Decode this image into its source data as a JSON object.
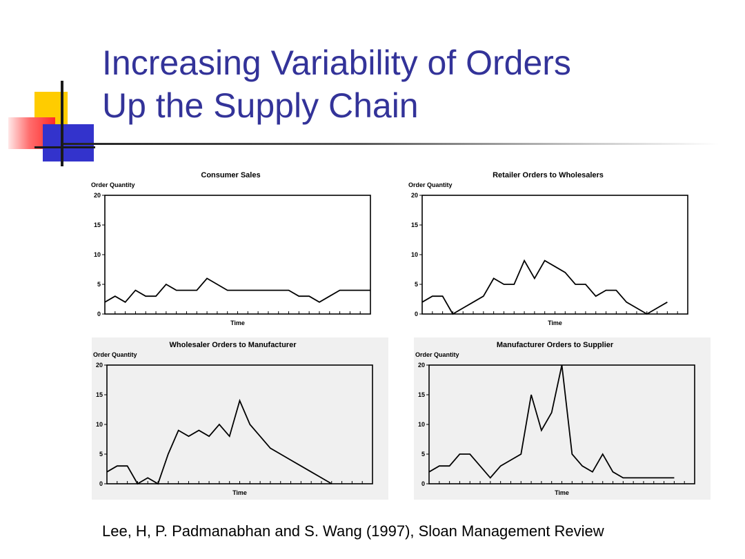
{
  "slide": {
    "title_line1": "Increasing Variability of Orders",
    "title_line2": "Up the Supply Chain",
    "citation": "Lee, H, P. Padmanabhan and S. Wang (1997), Sloan Management Review",
    "title_color": "#333399"
  },
  "chart_data": [
    {
      "type": "line",
      "title": "Consumer Sales",
      "ylabel": "Order Quantity",
      "xlabel": "Time",
      "ylim": [
        0,
        20
      ],
      "yticks": [
        0,
        5,
        10,
        15,
        20
      ],
      "ytick_labels": [
        "0",
        "5",
        "10",
        "15",
        "20"
      ],
      "xlim": [
        0,
        26
      ],
      "grid": false,
      "x": [
        0,
        1,
        2,
        3,
        4,
        5,
        6,
        7,
        8,
        9,
        10,
        11,
        12,
        13,
        14,
        15,
        16,
        17,
        18,
        19,
        20,
        21,
        22,
        23,
        24,
        25,
        26
      ],
      "values": [
        2,
        3,
        2,
        4,
        3,
        3,
        5,
        4,
        4,
        4,
        6,
        5,
        4,
        4,
        4,
        4,
        4,
        4,
        4,
        3,
        3,
        2,
        3,
        4,
        4,
        4,
        4
      ]
    },
    {
      "type": "line",
      "title": "Retailer Orders to Wholesalers",
      "ylabel": "Order Quantity",
      "xlabel": "Time",
      "ylim": [
        0,
        20
      ],
      "yticks": [
        0,
        5,
        10,
        15,
        20
      ],
      "ytick_labels": [
        "0",
        "5",
        "10",
        "15",
        "20"
      ],
      "xlim": [
        0,
        26
      ],
      "grid": false,
      "x": [
        0,
        1,
        2,
        3,
        4,
        5,
        6,
        7,
        8,
        9,
        10,
        11,
        12,
        13,
        14,
        15,
        16,
        17,
        18,
        19,
        20,
        21,
        22,
        23,
        24,
        25,
        26
      ],
      "values": [
        2,
        3,
        3,
        0,
        1,
        2,
        3,
        6,
        5,
        5,
        9,
        6,
        9,
        8,
        7,
        5,
        5,
        3,
        4,
        4,
        2,
        1,
        0,
        1,
        2,
        null,
        null
      ]
    },
    {
      "type": "line",
      "title": "Wholesaler Orders to Manufacturer",
      "ylabel": "Order Quantity",
      "xlabel": "Time",
      "ylim": [
        0,
        20
      ],
      "yticks": [
        0,
        5,
        10,
        15,
        20
      ],
      "ytick_labels": [
        "0",
        "5",
        "10",
        "15",
        "20"
      ],
      "xlim": [
        0,
        26
      ],
      "grid": false,
      "x": [
        0,
        1,
        2,
        3,
        4,
        5,
        6,
        7,
        8,
        9,
        10,
        11,
        12,
        13,
        14,
        15,
        16,
        17,
        18,
        19,
        20,
        21,
        22,
        23,
        24,
        25,
        26
      ],
      "values": [
        2,
        3,
        3,
        0,
        1,
        0,
        5,
        9,
        8,
        9,
        8,
        10,
        8,
        14,
        10,
        8,
        6,
        5,
        4,
        3,
        2,
        1,
        0,
        null,
        null,
        null,
        null
      ]
    },
    {
      "type": "line",
      "title": "Manufacturer Orders to Supplier",
      "ylabel": "Order Quantity",
      "xlabel": "Time",
      "ylim": [
        0,
        20
      ],
      "yticks": [
        0,
        5,
        10,
        15,
        20
      ],
      "ytick_labels": [
        "0",
        "5",
        "10",
        "15",
        "20"
      ],
      "xlim": [
        0,
        26
      ],
      "grid": false,
      "x": [
        0,
        1,
        2,
        3,
        4,
        5,
        6,
        7,
        8,
        9,
        10,
        11,
        12,
        13,
        14,
        15,
        16,
        17,
        18,
        19,
        20,
        21,
        22,
        23,
        24,
        25,
        26
      ],
      "values": [
        2,
        3,
        3,
        5,
        5,
        3,
        1,
        3,
        4,
        5,
        15,
        9,
        12,
        20,
        5,
        3,
        2,
        5,
        2,
        1,
        1,
        1,
        1,
        1,
        1,
        null,
        null
      ]
    }
  ]
}
